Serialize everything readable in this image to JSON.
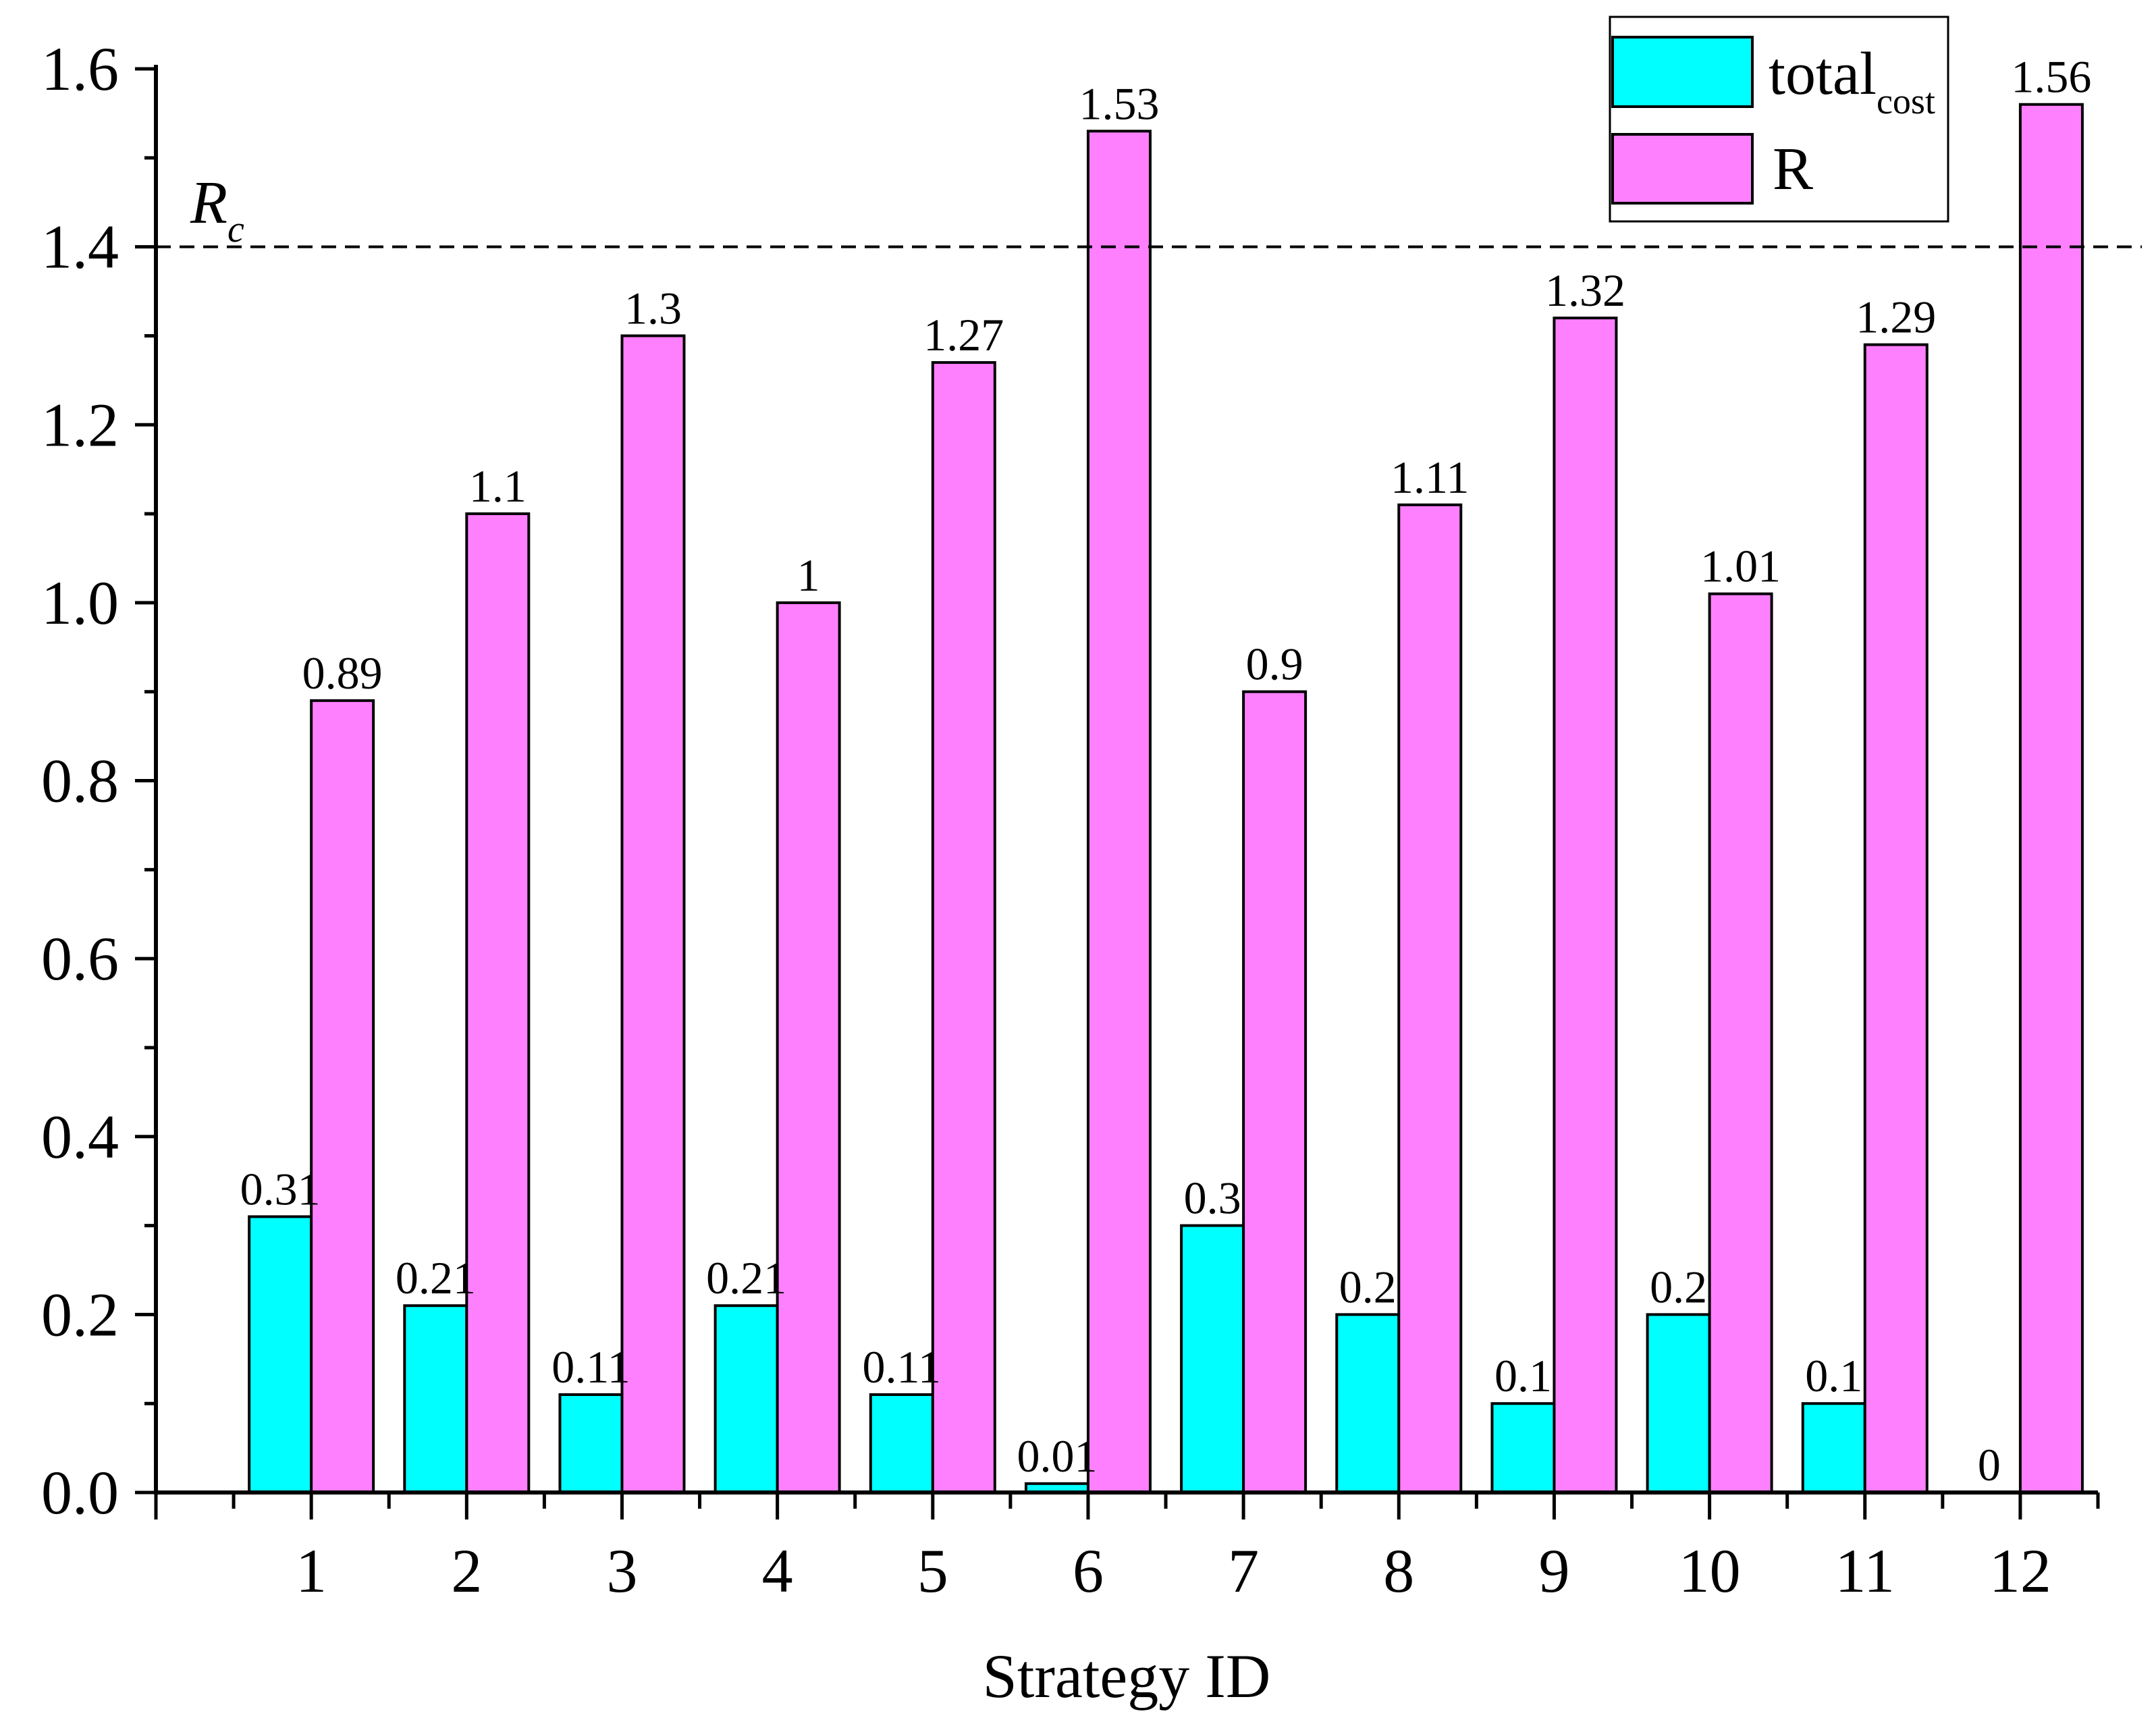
{
  "chart_data": {
    "type": "bar",
    "title": "",
    "xlabel": "Strategy ID",
    "ylabel": "",
    "categories": [
      "1",
      "2",
      "3",
      "4",
      "5",
      "6",
      "7",
      "8",
      "9",
      "10",
      "11",
      "12"
    ],
    "xlim": [
      0,
      12.5
    ],
    "ylim": [
      0,
      1.6
    ],
    "yticks": [
      "0.0",
      "0.2",
      "0.4",
      "0.6",
      "0.8",
      "1.0",
      "1.2",
      "1.4",
      "1.6"
    ],
    "grid": false,
    "legend_position": "top-right",
    "series": [
      {
        "name": "total",
        "name_sub": "cost",
        "color": "#00FFFF",
        "values": [
          0.31,
          0.21,
          0.11,
          0.21,
          0.11,
          0.01,
          0.3,
          0.2,
          0.1,
          0.2,
          0.1,
          0
        ]
      },
      {
        "name": "R",
        "color": "#FF80FF",
        "values": [
          0.89,
          1.1,
          1.3,
          1,
          1.27,
          1.53,
          0.9,
          1.11,
          1.32,
          1.01,
          1.29,
          1.56
        ]
      }
    ],
    "reference_line": {
      "value": 1.4,
      "label": "R",
      "label_sub": "c"
    }
  }
}
